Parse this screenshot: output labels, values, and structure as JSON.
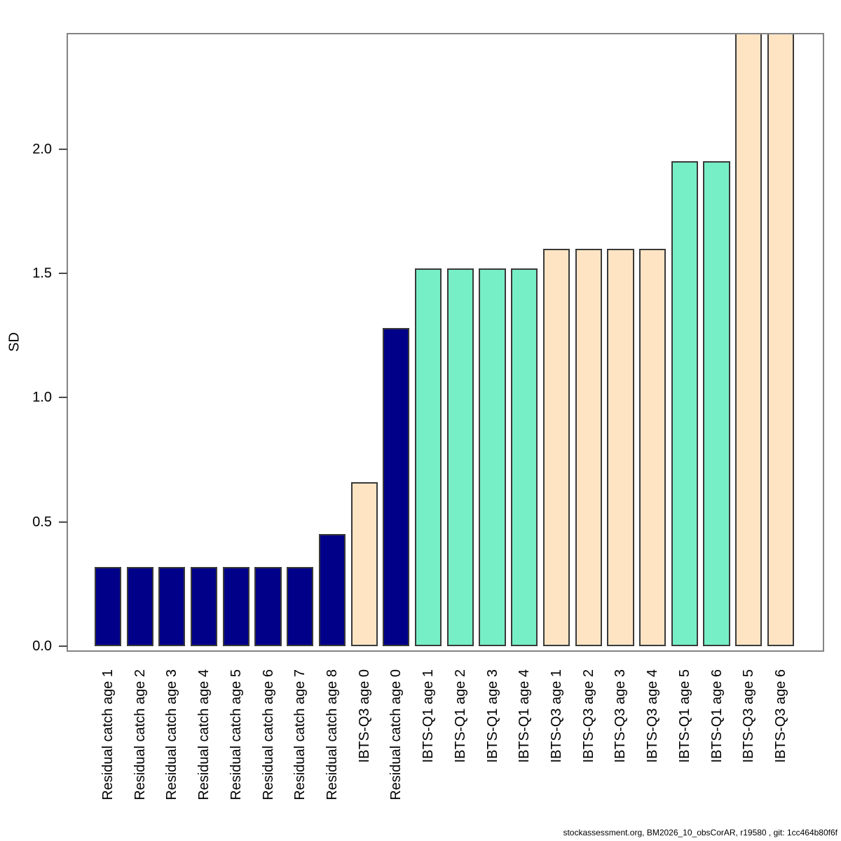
{
  "figure": {
    "ylabel": "SD",
    "footer": "stockassessment.org, BM2026_10_obsCorAR, r19580 , git: 1cc464b80f6f"
  },
  "chart_data": {
    "type": "bar",
    "title": "",
    "xlabel": "",
    "ylabel": "SD",
    "ylim": [
      0,
      2.47
    ],
    "grid": false,
    "legend": false,
    "yticks": [
      0,
      0.5,
      1,
      1.5,
      2
    ],
    "ytick_labels": [
      "0.0",
      "0.5",
      "1.0",
      "1.5",
      "2.0"
    ],
    "colors": {
      "residual_catch": "#000089",
      "ibts_q1": "#76EEC6",
      "ibts_q3": "#FFE4C4"
    },
    "bar_border_color": "#3A3A3A",
    "bars": [
      {
        "label": "Residual catch age 1",
        "group": "residual_catch",
        "value": 0.32
      },
      {
        "label": "Residual catch age 2",
        "group": "residual_catch",
        "value": 0.32
      },
      {
        "label": "Residual catch age 3",
        "group": "residual_catch",
        "value": 0.32
      },
      {
        "label": "Residual catch age 4",
        "group": "residual_catch",
        "value": 0.32
      },
      {
        "label": "Residual catch age 5",
        "group": "residual_catch",
        "value": 0.32
      },
      {
        "label": "Residual catch age 6",
        "group": "residual_catch",
        "value": 0.32
      },
      {
        "label": "Residual catch age 7",
        "group": "residual_catch",
        "value": 0.32
      },
      {
        "label": "Residual catch age 8",
        "group": "residual_catch",
        "value": 0.45
      },
      {
        "label": "IBTS-Q3 age 0",
        "group": "ibts_q3",
        "value": 0.66
      },
      {
        "label": "Residual catch age 0",
        "group": "residual_catch",
        "value": 1.28
      },
      {
        "label": "IBTS-Q1 age 1",
        "group": "ibts_q1",
        "value": 1.52
      },
      {
        "label": "IBTS-Q1 age 2",
        "group": "ibts_q1",
        "value": 1.52
      },
      {
        "label": "IBTS-Q1 age 3",
        "group": "ibts_q1",
        "value": 1.52
      },
      {
        "label": "IBTS-Q1 age 4",
        "group": "ibts_q1",
        "value": 1.52
      },
      {
        "label": "IBTS-Q3 age 1",
        "group": "ibts_q3",
        "value": 1.6
      },
      {
        "label": "IBTS-Q3 age 2",
        "group": "ibts_q3",
        "value": 1.6
      },
      {
        "label": "IBTS-Q3 age 3",
        "group": "ibts_q3",
        "value": 1.6
      },
      {
        "label": "IBTS-Q3 age 4",
        "group": "ibts_q3",
        "value": 1.6
      },
      {
        "label": "IBTS-Q1 age 5",
        "group": "ibts_q1",
        "value": 1.95
      },
      {
        "label": "IBTS-Q1 age 6",
        "group": "ibts_q1",
        "value": 1.95
      },
      {
        "label": "IBTS-Q3 age 5",
        "group": "ibts_q3",
        "value": 2.47,
        "clipped": true
      },
      {
        "label": "IBTS-Q3 age 6",
        "group": "ibts_q3",
        "value": 2.47,
        "clipped": true
      }
    ]
  }
}
